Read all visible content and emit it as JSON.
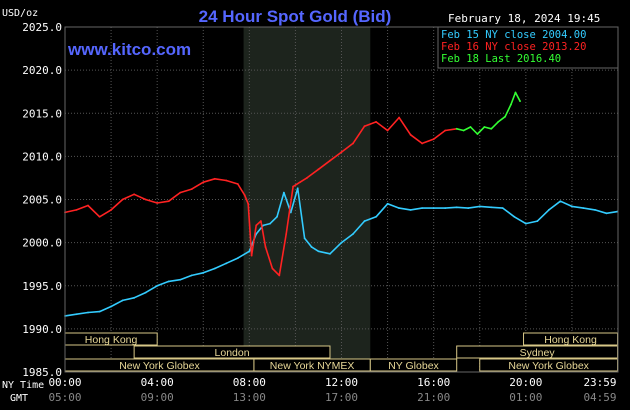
{
  "chart_data": {
    "type": "line",
    "title": "24 Hour Spot Gold (Bid)",
    "website": "www.kitco.com",
    "date_label": "February 18, 2024 19:45",
    "ylabel": "USD/oz",
    "ylim": [
      1985.0,
      2025.0
    ],
    "yticks": [
      "2025.0",
      "2020.0",
      "2015.0",
      "2010.0",
      "2005.0",
      "2000.0",
      "1995.0",
      "1990.0",
      "1985.0"
    ],
    "x_label_ny": "NY Time",
    "x_label_gmt": "GMT",
    "xticks_ny": [
      "00:00",
      "04:00",
      "08:00",
      "12:00",
      "16:00",
      "20:00",
      "23:59"
    ],
    "xticks_gmt": [
      "05:00",
      "09:00",
      "13:00",
      "17:00",
      "21:00",
      "01:00",
      "04:59"
    ],
    "grid": true,
    "legend_position": "top-right",
    "legend": [
      {
        "text": "Feb 15 NY close 2004.00",
        "color": "#33ccff"
      },
      {
        "text": "Feb 16 NY close 2013.20",
        "color": "#ff2222"
      },
      {
        "text": "Feb 18 Last 2016.40",
        "color": "#33ff33"
      }
    ],
    "shaded_range_hours": [
      7.75,
      13.25
    ],
    "series": [
      {
        "name": "Feb 15 NY close 2004.00",
        "color": "#33ccff",
        "x": [
          0.0,
          0.5,
          1.0,
          1.5,
          2.0,
          2.5,
          3.0,
          3.5,
          4.0,
          4.5,
          5.0,
          5.5,
          6.0,
          6.5,
          7.0,
          7.5,
          8.0,
          8.3,
          8.6,
          8.9,
          9.2,
          9.5,
          9.8,
          10.1,
          10.4,
          10.7,
          11.0,
          11.5,
          12.0,
          12.5,
          13.0,
          13.5,
          14.0,
          14.5,
          15.0,
          15.5,
          16.0,
          16.5,
          17.0,
          17.5,
          18.0,
          18.5,
          19.0,
          19.5,
          20.0,
          20.5,
          21.0,
          21.5,
          22.0,
          22.5,
          23.0,
          23.5,
          23.98
        ],
        "values": [
          1991.5,
          1991.7,
          1991.9,
          1992.0,
          1992.6,
          1993.3,
          1993.6,
          1994.2,
          1995.0,
          1995.5,
          1995.7,
          1996.2,
          1996.5,
          1997.0,
          1997.6,
          1998.2,
          1999.0,
          2001.0,
          2002.0,
          2002.2,
          2003.0,
          2005.8,
          2003.5,
          2006.3,
          2000.5,
          1999.5,
          1999.0,
          1998.7,
          2000.0,
          2001.0,
          2002.5,
          2003.0,
          2004.5,
          2004.0,
          2003.8,
          2004.0,
          2004.0,
          2004.0,
          2004.1,
          2004.0,
          2004.2,
          2004.1,
          2004.0,
          2003.0,
          2002.2,
          2002.5,
          2003.8,
          2004.8,
          2004.2,
          2004.0,
          2003.8,
          2003.4,
          2003.6
        ]
      },
      {
        "name": "Feb 16 NY close 2013.20",
        "color": "#ff2222",
        "x": [
          0.0,
          0.5,
          1.0,
          1.5,
          2.0,
          2.5,
          3.0,
          3.5,
          4.0,
          4.5,
          5.0,
          5.5,
          6.0,
          6.5,
          7.0,
          7.5,
          7.8,
          7.95,
          8.1,
          8.3,
          8.5,
          8.7,
          9.0,
          9.3,
          9.6,
          9.9,
          10.2,
          10.5,
          11.0,
          11.5,
          12.0,
          12.5,
          13.0,
          13.5,
          14.0,
          14.5,
          15.0,
          15.5,
          16.0,
          16.5,
          17.0
        ],
        "values": [
          2003.5,
          2003.8,
          2004.3,
          2003.0,
          2003.8,
          2005.0,
          2005.6,
          2005.0,
          2004.6,
          2004.8,
          2005.8,
          2006.2,
          2007.0,
          2007.4,
          2007.2,
          2006.8,
          2005.5,
          2004.5,
          1998.5,
          2002.0,
          2002.5,
          1999.5,
          1997.0,
          1996.2,
          2001.0,
          2006.5,
          2007.0,
          2007.5,
          2008.5,
          2009.5,
          2010.5,
          2011.5,
          2013.5,
          2014.0,
          2013.0,
          2014.5,
          2012.5,
          2011.5,
          2012.0,
          2013.0,
          2013.2
        ]
      },
      {
        "name": "Feb 18 Last 2016.40",
        "color": "#33ff33",
        "x": [
          17.0,
          17.3,
          17.6,
          17.9,
          18.2,
          18.5,
          18.8,
          19.1,
          19.35,
          19.55,
          19.75
        ],
        "values": [
          2013.2,
          2013.0,
          2013.4,
          2012.6,
          2013.4,
          2013.2,
          2014.0,
          2014.6,
          2016.0,
          2017.4,
          2016.4
        ]
      }
    ]
  },
  "sessions": [
    {
      "label": "Hong Kong",
      "row": 0,
      "start_h": 0.0,
      "end_h": 4.0
    },
    {
      "label": "Hong Kong",
      "row": 0,
      "start_h": 19.9,
      "end_h": 23.98
    },
    {
      "label": "London",
      "row": 1,
      "start_h": 3.0,
      "end_h": 11.5
    },
    {
      "label": "Sydney",
      "row": 1,
      "start_h": 17.0,
      "end_h": 23.98
    },
    {
      "label": "New York Globex",
      "row": 2,
      "start_h": 0.0,
      "end_h": 8.2
    },
    {
      "label": "New York NYMEX",
      "row": 2,
      "start_h": 8.2,
      "end_h": 13.25
    },
    {
      "label": "NY Globex",
      "row": 2,
      "start_h": 13.25,
      "end_h": 17.0
    },
    {
      "label": "New York Globex",
      "row": 2,
      "start_h": 18.0,
      "end_h": 23.98
    }
  ]
}
